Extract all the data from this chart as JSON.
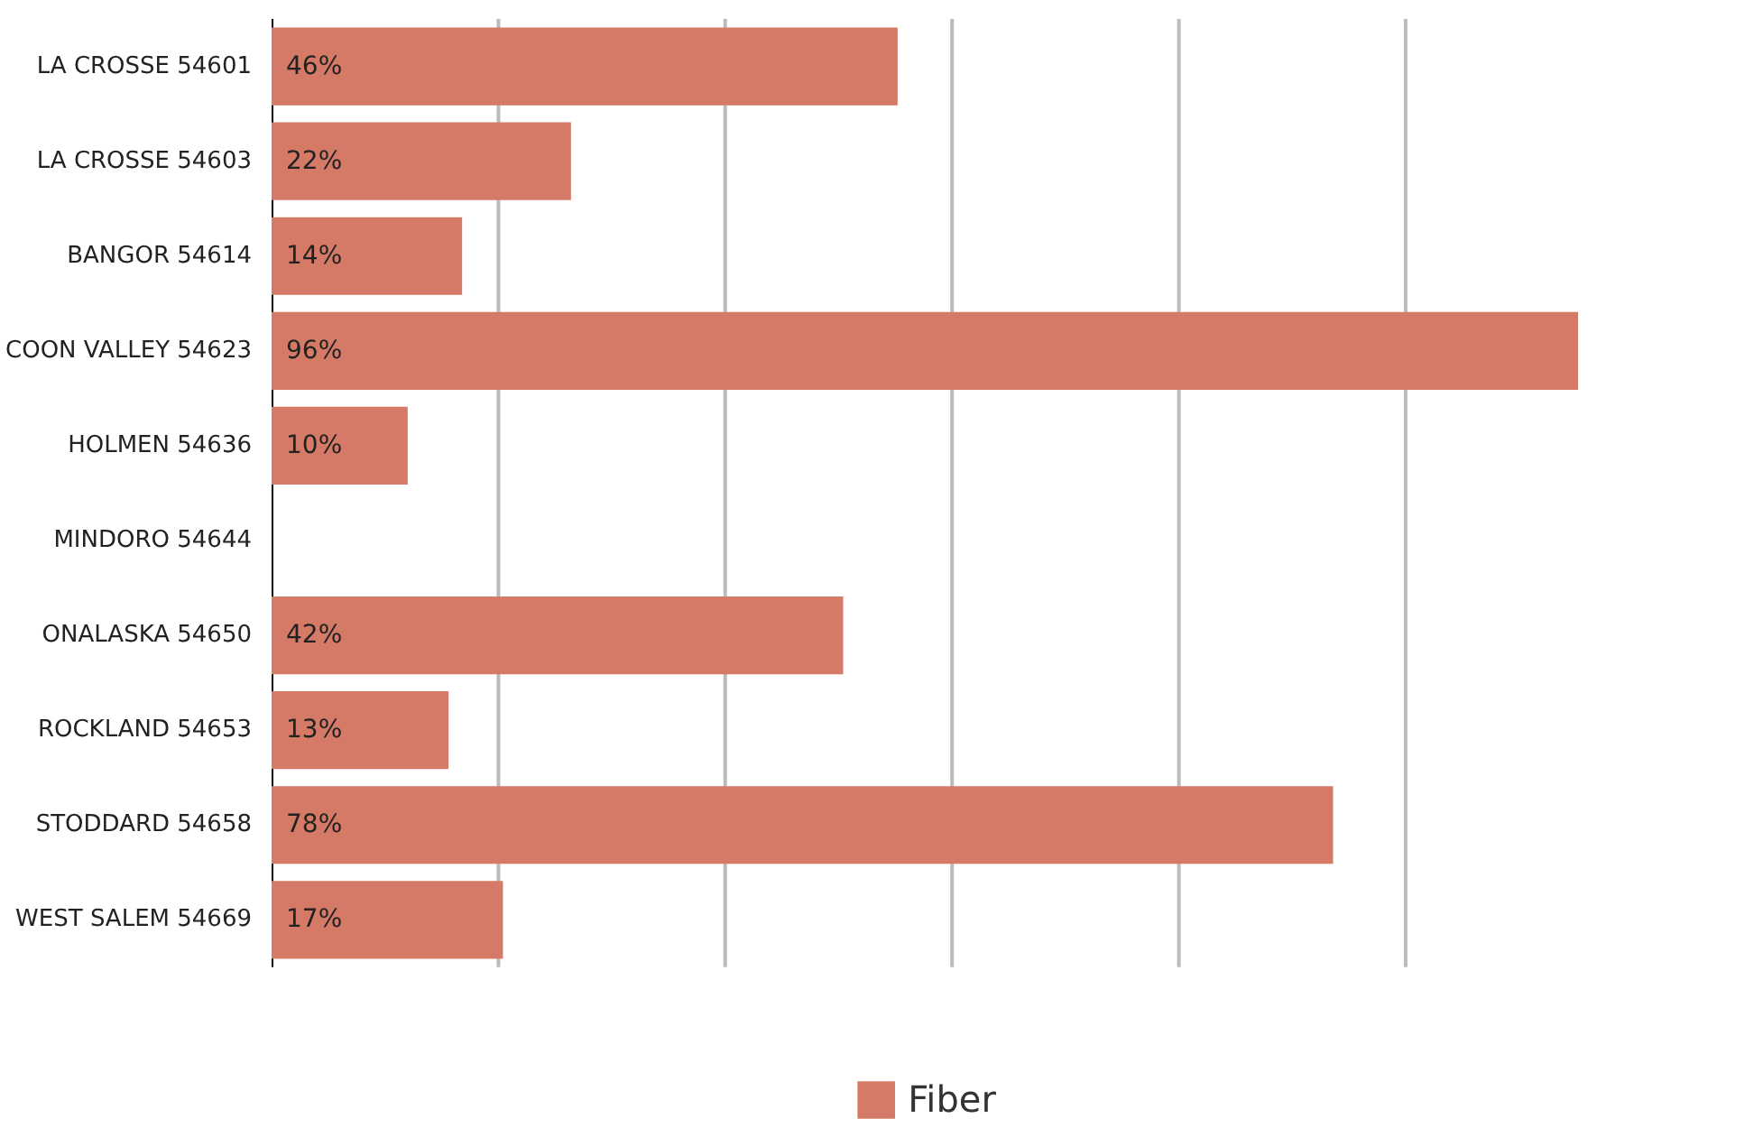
{
  "chart_data": {
    "type": "bar",
    "orientation": "horizontal",
    "categories": [
      "LA CROSSE 54601",
      "LA CROSSE 54603",
      "BANGOR 54614",
      "COON VALLEY 54623",
      "HOLMEN 54636",
      "MINDORO 54644",
      "ONALASKA 54650",
      "ROCKLAND 54653",
      "STODDARD 54658",
      "WEST SALEM 54669"
    ],
    "series": [
      {
        "name": "Fiber",
        "color": "#d57a66",
        "values": [
          46,
          22,
          14,
          96,
          10,
          null,
          42,
          13,
          78,
          17
        ],
        "value_labels": [
          "46%",
          "22%",
          "14%",
          "96%",
          "10%",
          null,
          "42%",
          "13%",
          "78%",
          "17%"
        ]
      }
    ],
    "xlim": [
      0,
      96
    ],
    "xticks": [
      {
        "value": 16.67,
        "label": null
      },
      {
        "value": 33.33,
        "label": null
      },
      {
        "value": 50,
        "label": null
      },
      {
        "value": 66.67,
        "label": null
      },
      {
        "value": 83.33,
        "label": null
      }
    ],
    "grid": "x",
    "legend": "bottom",
    "tick_labels": "y"
  }
}
